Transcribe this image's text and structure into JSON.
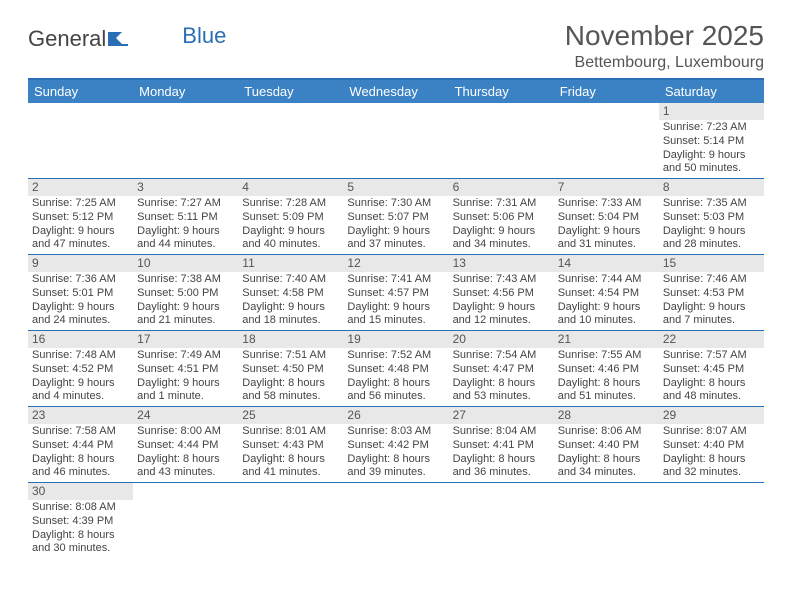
{
  "logo": {
    "text1": "General",
    "text2": "Blue"
  },
  "title": "November 2025",
  "subtitle": "Bettembourg, Luxembourg",
  "weekday_header_bg": "#3b82c4",
  "border_color": "#2a6fb5",
  "daynum_bg": "#e8e8e8",
  "weekdays": [
    "Sunday",
    "Monday",
    "Tuesday",
    "Wednesday",
    "Thursday",
    "Friday",
    "Saturday"
  ],
  "weeks": [
    [
      null,
      null,
      null,
      null,
      null,
      null,
      {
        "n": "1",
        "sr": "7:23 AM",
        "ss": "5:14 PM",
        "dl1": "9 hours",
        "dl2": "and 50 minutes."
      }
    ],
    [
      {
        "n": "2",
        "sr": "7:25 AM",
        "ss": "5:12 PM",
        "dl1": "9 hours",
        "dl2": "and 47 minutes."
      },
      {
        "n": "3",
        "sr": "7:27 AM",
        "ss": "5:11 PM",
        "dl1": "9 hours",
        "dl2": "and 44 minutes."
      },
      {
        "n": "4",
        "sr": "7:28 AM",
        "ss": "5:09 PM",
        "dl1": "9 hours",
        "dl2": "and 40 minutes."
      },
      {
        "n": "5",
        "sr": "7:30 AM",
        "ss": "5:07 PM",
        "dl1": "9 hours",
        "dl2": "and 37 minutes."
      },
      {
        "n": "6",
        "sr": "7:31 AM",
        "ss": "5:06 PM",
        "dl1": "9 hours",
        "dl2": "and 34 minutes."
      },
      {
        "n": "7",
        "sr": "7:33 AM",
        "ss": "5:04 PM",
        "dl1": "9 hours",
        "dl2": "and 31 minutes."
      },
      {
        "n": "8",
        "sr": "7:35 AM",
        "ss": "5:03 PM",
        "dl1": "9 hours",
        "dl2": "and 28 minutes."
      }
    ],
    [
      {
        "n": "9",
        "sr": "7:36 AM",
        "ss": "5:01 PM",
        "dl1": "9 hours",
        "dl2": "and 24 minutes."
      },
      {
        "n": "10",
        "sr": "7:38 AM",
        "ss": "5:00 PM",
        "dl1": "9 hours",
        "dl2": "and 21 minutes."
      },
      {
        "n": "11",
        "sr": "7:40 AM",
        "ss": "4:58 PM",
        "dl1": "9 hours",
        "dl2": "and 18 minutes."
      },
      {
        "n": "12",
        "sr": "7:41 AM",
        "ss": "4:57 PM",
        "dl1": "9 hours",
        "dl2": "and 15 minutes."
      },
      {
        "n": "13",
        "sr": "7:43 AM",
        "ss": "4:56 PM",
        "dl1": "9 hours",
        "dl2": "and 12 minutes."
      },
      {
        "n": "14",
        "sr": "7:44 AM",
        "ss": "4:54 PM",
        "dl1": "9 hours",
        "dl2": "and 10 minutes."
      },
      {
        "n": "15",
        "sr": "7:46 AM",
        "ss": "4:53 PM",
        "dl1": "9 hours",
        "dl2": "and 7 minutes."
      }
    ],
    [
      {
        "n": "16",
        "sr": "7:48 AM",
        "ss": "4:52 PM",
        "dl1": "9 hours",
        "dl2": "and 4 minutes."
      },
      {
        "n": "17",
        "sr": "7:49 AM",
        "ss": "4:51 PM",
        "dl1": "9 hours",
        "dl2": "and 1 minute."
      },
      {
        "n": "18",
        "sr": "7:51 AM",
        "ss": "4:50 PM",
        "dl1": "8 hours",
        "dl2": "and 58 minutes."
      },
      {
        "n": "19",
        "sr": "7:52 AM",
        "ss": "4:48 PM",
        "dl1": "8 hours",
        "dl2": "and 56 minutes."
      },
      {
        "n": "20",
        "sr": "7:54 AM",
        "ss": "4:47 PM",
        "dl1": "8 hours",
        "dl2": "and 53 minutes."
      },
      {
        "n": "21",
        "sr": "7:55 AM",
        "ss": "4:46 PM",
        "dl1": "8 hours",
        "dl2": "and 51 minutes."
      },
      {
        "n": "22",
        "sr": "7:57 AM",
        "ss": "4:45 PM",
        "dl1": "8 hours",
        "dl2": "and 48 minutes."
      }
    ],
    [
      {
        "n": "23",
        "sr": "7:58 AM",
        "ss": "4:44 PM",
        "dl1": "8 hours",
        "dl2": "and 46 minutes."
      },
      {
        "n": "24",
        "sr": "8:00 AM",
        "ss": "4:44 PM",
        "dl1": "8 hours",
        "dl2": "and 43 minutes."
      },
      {
        "n": "25",
        "sr": "8:01 AM",
        "ss": "4:43 PM",
        "dl1": "8 hours",
        "dl2": "and 41 minutes."
      },
      {
        "n": "26",
        "sr": "8:03 AM",
        "ss": "4:42 PM",
        "dl1": "8 hours",
        "dl2": "and 39 minutes."
      },
      {
        "n": "27",
        "sr": "8:04 AM",
        "ss": "4:41 PM",
        "dl1": "8 hours",
        "dl2": "and 36 minutes."
      },
      {
        "n": "28",
        "sr": "8:06 AM",
        "ss": "4:40 PM",
        "dl1": "8 hours",
        "dl2": "and 34 minutes."
      },
      {
        "n": "29",
        "sr": "8:07 AM",
        "ss": "4:40 PM",
        "dl1": "8 hours",
        "dl2": "and 32 minutes."
      }
    ],
    [
      {
        "n": "30",
        "sr": "8:08 AM",
        "ss": "4:39 PM",
        "dl1": "8 hours",
        "dl2": "and 30 minutes."
      },
      null,
      null,
      null,
      null,
      null,
      null
    ]
  ],
  "labels": {
    "sunrise_prefix": "Sunrise: ",
    "sunset_prefix": "Sunset: ",
    "daylight_prefix": "Daylight: "
  }
}
